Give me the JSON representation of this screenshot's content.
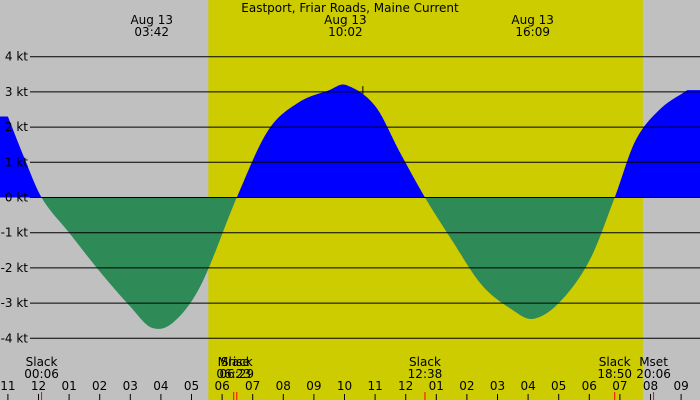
{
  "chart_data": {
    "type": "area",
    "title": "Eastport, Friar Roads, Maine Current",
    "unit": "kt",
    "ylim": [
      -4.5,
      4.0
    ],
    "y_ticks": [
      {
        "value": 4,
        "label": "4 kt"
      },
      {
        "value": 3,
        "label": "3 kt"
      },
      {
        "value": 2,
        "label": "2 kt"
      },
      {
        "value": 1,
        "label": "1 kt"
      },
      {
        "value": 0,
        "label": "0 kt"
      },
      {
        "value": -1,
        "label": "-1 kt"
      },
      {
        "value": -2,
        "label": "-2 kt"
      },
      {
        "value": -3,
        "label": "-3 kt"
      },
      {
        "value": -4,
        "label": "-4 kt"
      }
    ],
    "xlim_hours": [
      -1.1,
      33.2
    ],
    "hour_labels": [
      {
        "h": -1,
        "label": "11"
      },
      {
        "h": 0,
        "label": "12"
      },
      {
        "h": 1,
        "label": "01"
      },
      {
        "h": 2,
        "label": "02"
      },
      {
        "h": 3,
        "label": "03"
      },
      {
        "h": 4,
        "label": "04"
      },
      {
        "h": 5,
        "label": "05"
      },
      {
        "h": 6,
        "label": "06"
      },
      {
        "h": 7,
        "label": "07"
      },
      {
        "h": 8,
        "label": "08"
      },
      {
        "h": 9,
        "label": "09"
      },
      {
        "h": 10,
        "label": "10"
      },
      {
        "h": 11,
        "label": "11"
      },
      {
        "h": 12,
        "label": "12"
      },
      {
        "h": 13,
        "label": "01"
      },
      {
        "h": 14,
        "label": "02"
      },
      {
        "h": 15,
        "label": "03"
      },
      {
        "h": 16,
        "label": "04"
      },
      {
        "h": 17,
        "label": "05"
      },
      {
        "h": 18,
        "label": "06"
      },
      {
        "h": 19,
        "label": "07"
      },
      {
        "h": 20,
        "label": "08"
      },
      {
        "h": 21,
        "label": "09"
      }
    ],
    "daylight": {
      "start": 5.55,
      "end": 19.75
    },
    "flood_color": "#0000ff",
    "ebb_color": "#2e8b57",
    "day_color": "#cccc00",
    "night_color": "#c0c0c0",
    "curve": [
      {
        "h": -1.0,
        "v": 2.3
      },
      {
        "h": -0.5,
        "v": 1.2
      },
      {
        "h": 0.1,
        "v": 0.0
      },
      {
        "h": 1.0,
        "v": -1.0
      },
      {
        "h": 2.0,
        "v": -2.1
      },
      {
        "h": 3.0,
        "v": -3.1
      },
      {
        "h": 3.7,
        "v": -3.7
      },
      {
        "h": 4.4,
        "v": -3.55
      },
      {
        "h": 5.3,
        "v": -2.5
      },
      {
        "h": 6.48,
        "v": 0.0
      },
      {
        "h": 7.5,
        "v": 1.9
      },
      {
        "h": 8.5,
        "v": 2.7
      },
      {
        "h": 9.5,
        "v": 3.05
      },
      {
        "h": 10.03,
        "v": 3.2
      },
      {
        "h": 11.0,
        "v": 2.6
      },
      {
        "h": 11.8,
        "v": 1.3
      },
      {
        "h": 12.63,
        "v": 0.0
      },
      {
        "h": 13.5,
        "v": -1.2
      },
      {
        "h": 14.5,
        "v": -2.5
      },
      {
        "h": 15.5,
        "v": -3.2
      },
      {
        "h": 16.15,
        "v": -3.45
      },
      {
        "h": 17.0,
        "v": -3.0
      },
      {
        "h": 18.0,
        "v": -1.8
      },
      {
        "h": 18.83,
        "v": 0.0
      },
      {
        "h": 19.5,
        "v": 1.6
      },
      {
        "h": 20.3,
        "v": 2.5
      },
      {
        "h": 21.2,
        "v": 3.05
      }
    ],
    "top_annotations": [
      {
        "h": 3.7,
        "date": "Aug 13",
        "time": "03:42"
      },
      {
        "h": 10.03,
        "date": "Aug 13",
        "time": "10:02"
      },
      {
        "h": 16.15,
        "date": "Aug 13",
        "time": "16:09"
      }
    ],
    "bottom_annotations": [
      {
        "h": 0.1,
        "label": "Slack",
        "time": "00:06"
      },
      {
        "h": 6.38,
        "label": "Mrise",
        "time": "06:23"
      },
      {
        "h": 6.48,
        "label": "Slack",
        "time": "06:29"
      },
      {
        "h": 12.63,
        "label": "Slack",
        "time": "12:38"
      },
      {
        "h": 18.83,
        "label": "Slack",
        "time": "18:50"
      },
      {
        "h": 20.1,
        "label": "Mset",
        "time": "20:06"
      }
    ]
  }
}
